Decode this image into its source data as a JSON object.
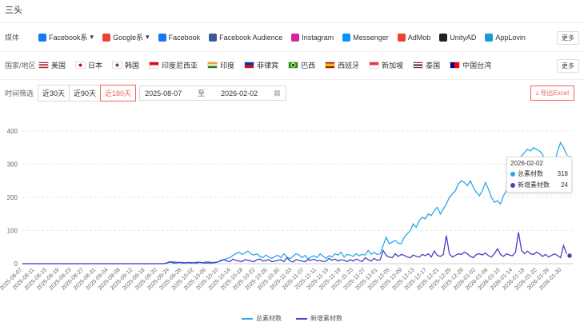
{
  "page": {
    "title": "三头"
  },
  "media": {
    "label": "媒体",
    "more": "更多",
    "items": [
      {
        "name": "Facebook系",
        "icon": "meta-icon",
        "color": "#1877f2",
        "dropdown": true
      },
      {
        "name": "Google系",
        "icon": "google-icon",
        "color": "#ea4335",
        "dropdown": true
      },
      {
        "name": "Facebook",
        "icon": "facebook-icon",
        "color": "#1877f2"
      },
      {
        "name": "Facebook Audience",
        "icon": "facebook-audience-icon",
        "color": "#3b5998"
      },
      {
        "name": "Instagram",
        "icon": "instagram-icon",
        "color": "#d6249f"
      },
      {
        "name": "Messenger",
        "icon": "messenger-icon",
        "color": "#0695ff"
      },
      {
        "name": "AdMob",
        "icon": "admob-icon",
        "color": "#ea4335"
      },
      {
        "name": "UnityAD",
        "icon": "unity-icon",
        "color": "#222222"
      },
      {
        "name": "AppLovin",
        "icon": "applovin-icon",
        "color": "#1a9bd7"
      }
    ]
  },
  "region": {
    "label": "国家/地区",
    "more": "更多",
    "items": [
      {
        "name": "美国",
        "flag": "us"
      },
      {
        "name": "日本",
        "flag": "jp"
      },
      {
        "name": "韩国",
        "flag": "kr"
      },
      {
        "name": "印度尼西亚",
        "flag": "id"
      },
      {
        "name": "印度",
        "flag": "in"
      },
      {
        "name": "菲律宾",
        "flag": "ph"
      },
      {
        "name": "巴西",
        "flag": "br"
      },
      {
        "name": "西班牙",
        "flag": "es"
      },
      {
        "name": "新加坡",
        "flag": "sg"
      },
      {
        "name": "泰国",
        "flag": "th"
      },
      {
        "name": "中国台湾",
        "flag": "tw"
      }
    ]
  },
  "time": {
    "label": "时间筛选",
    "ranges": [
      "近30天",
      "近90天",
      "近180天"
    ],
    "active_range": "近180天",
    "start_date": "2025-08-07",
    "end_date": "2026-02-02",
    "separator": "至"
  },
  "export": {
    "label": "导出Excel"
  },
  "tooltip": {
    "date": "2026-02-02",
    "rows": [
      {
        "name": "总素材数",
        "value": "318",
        "color": "#2aa7e8"
      },
      {
        "name": "新增素材数",
        "value": "24",
        "color": "#4b3fc4"
      }
    ]
  },
  "chart_data": {
    "type": "line",
    "ylim": [
      0,
      400
    ],
    "yticks": [
      0,
      100,
      200,
      300,
      400
    ],
    "tick_labels": [
      "2025-08-07",
      "2025-08-11",
      "2025-08-15",
      "2025-08-19",
      "2025-08-23",
      "2025-08-27",
      "2025-08-31",
      "2025-09-04",
      "2025-09-08",
      "2025-09-12",
      "2025-09-16",
      "2025-09-20",
      "2025-09-24",
      "2025-09-28",
      "2025-10-02",
      "2025-10-06",
      "2025-10-10",
      "2025-10-14",
      "2025-10-18",
      "2025-10-22",
      "2025-10-26",
      "2025-10-30",
      "2025-11-03",
      "2025-11-07",
      "2025-11-11",
      "2025-11-15",
      "2025-11-19",
      "2025-11-23",
      "2025-11-27",
      "2025-12-01",
      "2025-12-05",
      "2025-12-09",
      "2025-12-13",
      "2025-12-17",
      "2025-12-21",
      "2025-12-25",
      "2025-12-29",
      "2026-01-02",
      "2026-01-06",
      "2026-01-10",
      "2026-01-14",
      "2026-01-18",
      "2026-01-22",
      "2026-01-26",
      "2026-01-30"
    ],
    "series": [
      {
        "name": "总素材数",
        "color": "#2aa7e8",
        "values": [
          0,
          0,
          0,
          0,
          0,
          0,
          0,
          0,
          0,
          0,
          0,
          0,
          0,
          0,
          0,
          0,
          0,
          0,
          0,
          0,
          0,
          0,
          0,
          0,
          0,
          0,
          0,
          0,
          0,
          0,
          0,
          0,
          0,
          0,
          0,
          0,
          0,
          0,
          0,
          0,
          0,
          0,
          0,
          0,
          0,
          0,
          0,
          0,
          2,
          4,
          6,
          5,
          3,
          4,
          3,
          2,
          4,
          3,
          5,
          4,
          3,
          6,
          5,
          4,
          3,
          5,
          8,
          12,
          15,
          18,
          25,
          30,
          35,
          28,
          32,
          38,
          30,
          26,
          30,
          22,
          18,
          26,
          20,
          16,
          22,
          25,
          18,
          30,
          20,
          15,
          22,
          30,
          26,
          18,
          25,
          14,
          20,
          24,
          18,
          30,
          22,
          16,
          24,
          20,
          30,
          26,
          35,
          20,
          28,
          26,
          22,
          30,
          24,
          28,
          26,
          40,
          28,
          34,
          28,
          30,
          55,
          80,
          60,
          65,
          70,
          62,
          60,
          80,
          90,
          100,
          120,
          110,
          130,
          140,
          135,
          150,
          145,
          160,
          170,
          150,
          165,
          180,
          200,
          210,
          220,
          240,
          250,
          245,
          235,
          250,
          230,
          215,
          205,
          220,
          245,
          225,
          200,
          185,
          190,
          180,
          205,
          220,
          240,
          255,
          285,
          300,
          325,
          335,
          345,
          340,
          350,
          345,
          340,
          330,
          300,
          280,
          285,
          300,
          340,
          365,
          350,
          330,
          318
        ]
      },
      {
        "name": "新增素材数",
        "color": "#4b3fc4",
        "values": [
          0,
          0,
          0,
          0,
          0,
          0,
          0,
          0,
          0,
          0,
          0,
          0,
          0,
          0,
          0,
          0,
          0,
          0,
          0,
          0,
          0,
          0,
          0,
          0,
          0,
          0,
          0,
          0,
          0,
          0,
          0,
          0,
          0,
          0,
          0,
          0,
          0,
          0,
          0,
          0,
          0,
          0,
          0,
          0,
          0,
          0,
          0,
          0,
          2,
          6,
          3,
          2,
          4,
          3,
          2,
          4,
          2,
          3,
          2,
          4,
          3,
          2,
          3,
          2,
          4,
          5,
          10,
          12,
          8,
          6,
          14,
          10,
          8,
          6,
          12,
          10,
          8,
          6,
          12,
          14,
          8,
          10,
          12,
          6,
          8,
          10,
          12,
          6,
          18,
          8,
          5,
          12,
          10,
          8,
          6,
          12,
          10,
          14,
          8,
          10,
          6,
          8,
          16,
          10,
          14,
          8,
          12,
          10,
          6,
          12,
          8,
          14,
          10,
          6,
          18,
          12,
          8,
          16,
          10,
          12,
          40,
          25,
          20,
          18,
          30,
          22,
          28,
          25,
          20,
          18,
          26,
          22,
          20,
          28,
          24,
          30,
          20,
          38,
          25,
          22,
          28,
          85,
          30,
          20,
          25,
          30,
          28,
          35,
          30,
          22,
          18,
          28,
          30,
          26,
          32,
          24,
          20,
          30,
          45,
          28,
          22,
          30,
          26,
          24,
          35,
          95,
          40,
          30,
          38,
          30,
          28,
          35,
          30,
          22,
          28,
          20,
          25,
          30,
          24,
          18,
          55,
          30,
          24
        ]
      }
    ]
  }
}
